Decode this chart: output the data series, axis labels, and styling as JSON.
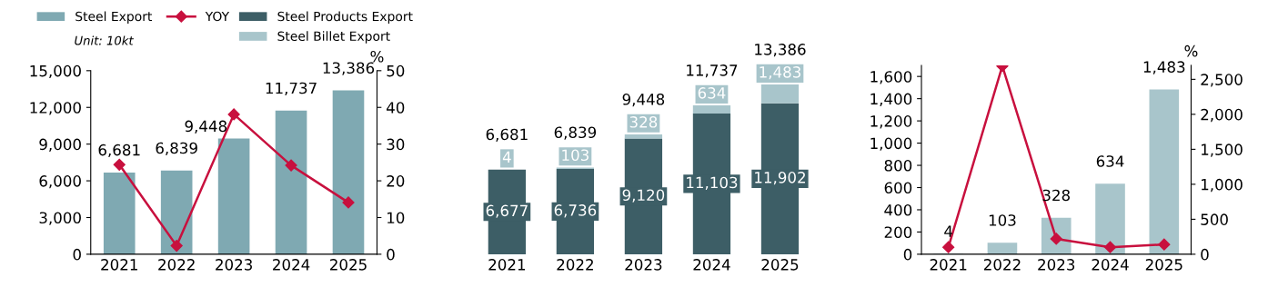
{
  "chart_data": [
    {
      "type": "bar",
      "categories": [
        "2021",
        "2022",
        "2023",
        "2024",
        "2025"
      ],
      "legend": "top",
      "annotations": [
        "Unit: 10kt"
      ],
      "ylim": [
        0,
        15000
      ],
      "yticks": [
        0,
        {
          "value": 3000,
          "label": "3,000"
        },
        {
          "value": 6000,
          "label": "6,000"
        },
        {
          "value": 9000,
          "label": "9,000"
        },
        {
          "value": 12000,
          "label": "12,000"
        },
        {
          "value": 15000,
          "label": "15,000"
        }
      ],
      "y2lim": [
        0,
        50
      ],
      "y2ticks": [
        0,
        10,
        20,
        30,
        40,
        50
      ],
      "y2label": "%",
      "series": [
        {
          "name": "Steel Export",
          "color": "#7fa9b2",
          "values": [
            6681,
            6839,
            9448,
            11737,
            13386
          ],
          "value_labels": [
            "6,681",
            "6,839",
            "9,448",
            "11,737",
            "13,386"
          ]
        },
        {
          "name": "YOY",
          "type": "line",
          "axis": "y2",
          "marker": "diamond",
          "color": "#c8103e",
          "values": [
            24.4,
            2.3,
            38.1,
            24.2,
            14.1
          ]
        }
      ]
    },
    {
      "type": "bar",
      "categories": [
        "2021",
        "2022",
        "2023",
        "2024",
        "2025"
      ],
      "legend": "top",
      "stacked": true,
      "tick_labels": "x",
      "totals": [
        "6,681",
        "6,839",
        "9,448",
        "11,737",
        "13,386"
      ],
      "series": [
        {
          "name": "Steel Products Export",
          "color": "#3d5e66",
          "values": [
            6677,
            6736,
            9120,
            11103,
            11902
          ],
          "value_labels": [
            "6,677",
            "6,736",
            "9,120",
            "11,103",
            "11,902"
          ]
        },
        {
          "name": "Steel Billet Export",
          "color": "#a8c5cb",
          "values": [
            4,
            103,
            328,
            634,
            1483
          ],
          "value_labels": [
            "4",
            "103",
            "328",
            "634",
            "1,483"
          ]
        }
      ]
    },
    {
      "type": "bar",
      "categories": [
        "2021",
        "2022",
        "2023",
        "2024",
        "2025"
      ],
      "legend": "top",
      "ylim": [
        0,
        1700
      ],
      "yticks": [
        0,
        200,
        400,
        600,
        800,
        {
          "value": 1000,
          "label": "1,000"
        },
        {
          "value": 1200,
          "label": "1,200"
        },
        {
          "value": 1400,
          "label": "1,400"
        },
        {
          "value": 1600,
          "label": "1,600"
        }
      ],
      "y2lim": [
        0,
        2700
      ],
      "y2ticks": [
        0,
        500,
        {
          "value": 1000,
          "label": "1,000"
        },
        {
          "value": 1500,
          "label": "1,500"
        },
        {
          "value": 2000,
          "label": "2,000"
        },
        {
          "value": 2500,
          "label": "2,500"
        }
      ],
      "y2label": "%",
      "series": [
        {
          "name": "Steel Billet Export",
          "color": "#a8c5cb",
          "values": [
            4,
            103,
            328,
            634,
            1483
          ],
          "value_labels": [
            "4",
            "103",
            "328",
            "634",
            "1,483"
          ]
        },
        {
          "name": "YOY",
          "type": "line",
          "axis": "y2",
          "marker": "diamond",
          "color": "#c8103e",
          "values": [
            100,
            2690,
            220,
            100,
            140
          ]
        }
      ]
    }
  ]
}
